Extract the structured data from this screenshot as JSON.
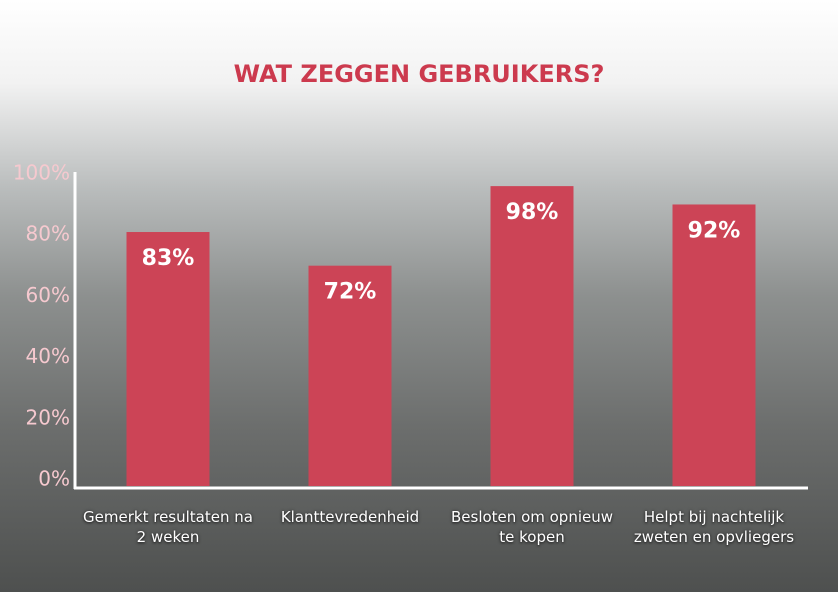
{
  "chart_data": {
    "type": "bar",
    "title": "WAT ZEGGEN GEBRUIKERS?",
    "categories": [
      "Gemerkt resultaten na 2 weken",
      "Klanttevredenheid",
      "Besloten om opnieuw te kopen",
      "Helpt bij nachtelijk zweten en opvliegers"
    ],
    "values": [
      83,
      72,
      98,
      92
    ],
    "value_labels": [
      "83%",
      "72%",
      "98%",
      "92%"
    ],
    "color": "#cc4456",
    "ylim": [
      0,
      100
    ],
    "yticks": [
      {
        "value": 0,
        "label": "0%"
      },
      {
        "value": 20,
        "label": "20%"
      },
      {
        "value": 40,
        "label": "40%"
      },
      {
        "value": 60,
        "label": "60%"
      },
      {
        "value": 80,
        "label": "80%"
      },
      {
        "value": 100,
        "label": "100%"
      }
    ],
    "grid": false
  }
}
